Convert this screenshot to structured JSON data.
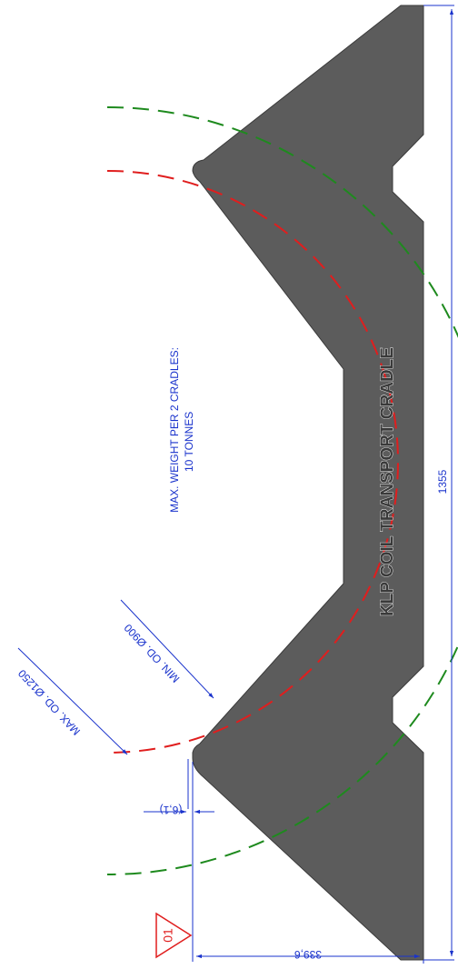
{
  "drawing": {
    "title": "KLP COIL TRANSPORT CRADLE",
    "note_line1": "MAX. WEIGHT PER 2 CRADLES:",
    "note_line2": "10 TONNES",
    "label_max_od": "MAX. OD. Ø1250",
    "label_min_od": "MIN. OD. Ø900",
    "dim_length": "1355",
    "dim_height": "339,6",
    "dim_offset": "(6,1)",
    "revision": "01"
  },
  "colors": {
    "body": "#5c5c5c",
    "dimension": "#1a33cc",
    "max_od_circle": "#1e8a1e",
    "min_od_circle": "#e01e1e",
    "revision_marker": "#e01e1e"
  }
}
